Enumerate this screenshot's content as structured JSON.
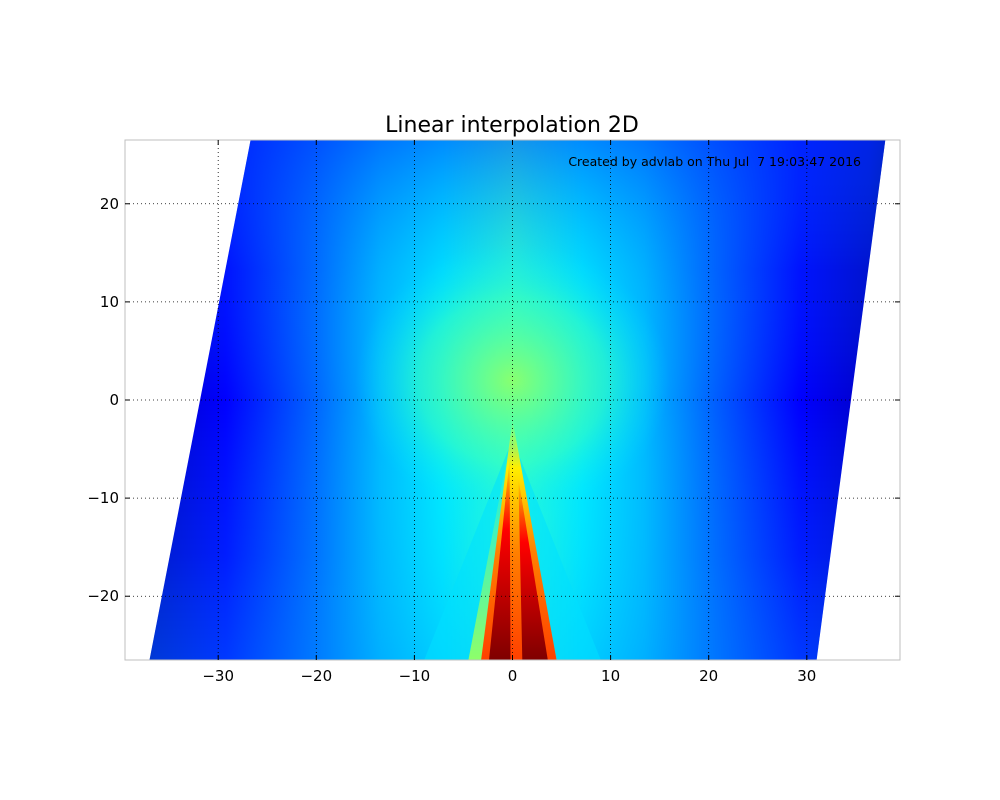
{
  "chart_data": {
    "type": "heatmap",
    "title": "Linear interpolation 2D",
    "annotation": "Created by advlab on Thu Jul  7 19:03:47 2016",
    "xlabel": "",
    "ylabel": "",
    "xlim": [
      -39.5,
      39.5
    ],
    "ylim": [
      -26.5,
      26.5
    ],
    "x_ticks": [
      -30,
      -20,
      -10,
      0,
      10,
      20,
      30
    ],
    "x_tick_labels": [
      "−30",
      "−20",
      "−10",
      "0",
      "10",
      "20",
      "30"
    ],
    "y_ticks": [
      20,
      10,
      0,
      -10,
      -20
    ],
    "y_tick_labels": [
      "20",
      "10",
      "0",
      "−10",
      "−20"
    ],
    "grid": true,
    "colormap": "jet",
    "domain": {
      "shape": "parallelogram",
      "left_edge": [
        [
          -37,
          -26.5
        ],
        [
          -26.7,
          26.5
        ]
      ],
      "right_edge": [
        [
          31,
          -26.5
        ],
        [
          38,
          26.5
        ]
      ]
    },
    "colors": {
      "jet_dark_blue": "#00007f",
      "jet_blue": "#0000ff",
      "jet_cyan": "#00ffff",
      "jet_green": "#7fff7f",
      "jet_yellow": "#ffff00",
      "jet_red": "#ff0000",
      "jet_dark_red": "#7f0000"
    }
  }
}
